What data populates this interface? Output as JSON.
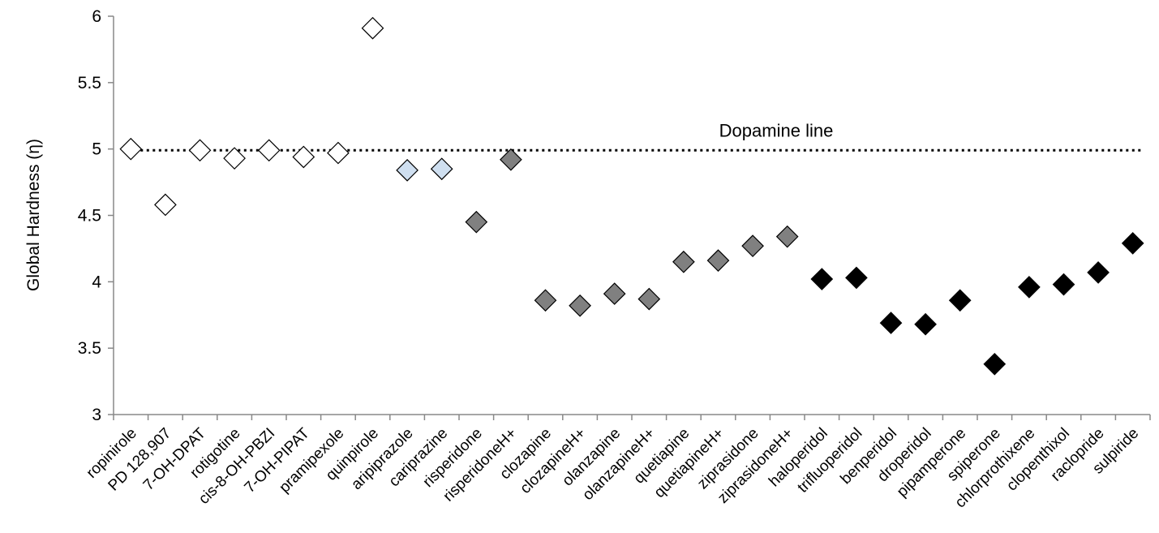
{
  "chart_data": {
    "type": "scatter",
    "title": "",
    "xlabel": "",
    "ylabel": "Global Hardness (η)",
    "ylim": [
      3,
      6
    ],
    "yticks": [
      "3",
      "3.5",
      "4",
      "4.5",
      "5",
      "5.5",
      "6"
    ],
    "grid": false,
    "legend": "none",
    "reference_line": {
      "label": "Dopamine line",
      "value": 4.99,
      "style": "dotted"
    },
    "categories": [
      "ropinirole",
      "PD 128,907",
      "7-OH-DPAT",
      "rotigotine",
      "cis-8-OH-PBZI",
      "7-OH-PIPAT",
      "pramipexole",
      "quinpirole",
      "aripiprazole",
      "cariprazine",
      "risperidone",
      "risperidoneH+",
      "clozapine",
      "clozapineH+",
      "olanzapine",
      "olanzapineH+",
      "quetiapine",
      "quetiapineH+",
      "ziprasidone",
      "ziprasidoneH+",
      "haloperidol",
      "trifluoperidol",
      "benperidol",
      "droperidol",
      "pipamperone",
      "spiperone",
      "chlorprothixene",
      "clopenthixol",
      "raclopride",
      "sulpiride"
    ],
    "values": [
      5.0,
      4.58,
      4.99,
      4.93,
      4.99,
      4.94,
      4.97,
      5.91,
      4.84,
      4.85,
      4.45,
      4.92,
      3.86,
      3.82,
      3.91,
      3.87,
      4.15,
      4.16,
      4.27,
      4.34,
      4.02,
      4.03,
      3.69,
      3.68,
      3.86,
      3.38,
      3.96,
      3.98,
      4.07,
      4.29
    ],
    "marker": "diamond",
    "marker_fills": [
      "#ffffff",
      "#ffffff",
      "#ffffff",
      "#ffffff",
      "#ffffff",
      "#ffffff",
      "#ffffff",
      "#ffffff",
      "#cfdff0",
      "#cfdff0",
      "#808080",
      "#808080",
      "#808080",
      "#808080",
      "#808080",
      "#808080",
      "#808080",
      "#808080",
      "#808080",
      "#808080",
      "#000000",
      "#000000",
      "#000000",
      "#000000",
      "#000000",
      "#000000",
      "#000000",
      "#000000",
      "#000000",
      "#000000"
    ],
    "marker_stroke": "#000000"
  }
}
